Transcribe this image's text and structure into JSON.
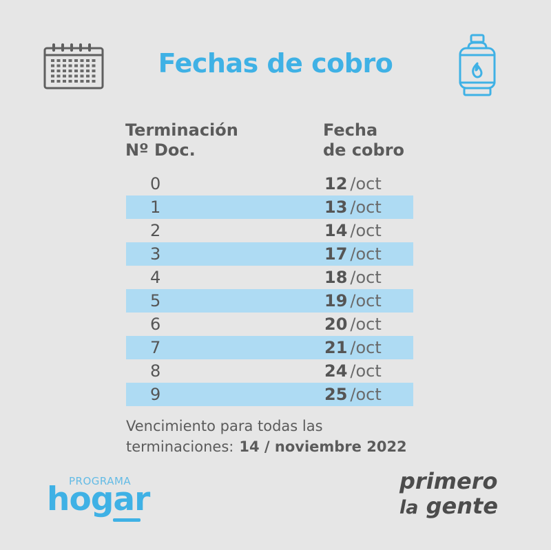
{
  "title": "Fechas de cobro",
  "headers": {
    "left_line1": "Terminación",
    "left_line2": "Nº Doc.",
    "right_line1": "Fecha",
    "right_line2": "de cobro"
  },
  "rows": [
    {
      "term": "0",
      "day": "12",
      "month": "/oct"
    },
    {
      "term": "1",
      "day": "13",
      "month": "/oct"
    },
    {
      "term": "2",
      "day": "14",
      "month": "/oct"
    },
    {
      "term": "3",
      "day": "17",
      "month": "/oct"
    },
    {
      "term": "4",
      "day": "18",
      "month": "/oct"
    },
    {
      "term": "5",
      "day": "19",
      "month": "/oct"
    },
    {
      "term": "6",
      "day": "20",
      "month": "/oct"
    },
    {
      "term": "7",
      "day": "21",
      "month": "/oct"
    },
    {
      "term": "8",
      "day": "24",
      "month": "/oct"
    },
    {
      "term": "9",
      "day": "25",
      "month": "/oct"
    }
  ],
  "footer": {
    "line1": "Vencimiento para todas las",
    "line2_label": "terminaciones:",
    "line2_value": "14 / noviembre 2022"
  },
  "logos": {
    "programa": "PROGRAMA",
    "hogar": "hogar",
    "primero": "primero",
    "la": "la",
    "gente": "gente"
  },
  "icons": {
    "left": "calendar-icon",
    "right": "gas-cylinder-icon"
  },
  "colors": {
    "accent": "#3fb1e5",
    "row_highlight": "#aedbf3",
    "background": "#e6e6e6",
    "text": "#5b5b5b"
  }
}
